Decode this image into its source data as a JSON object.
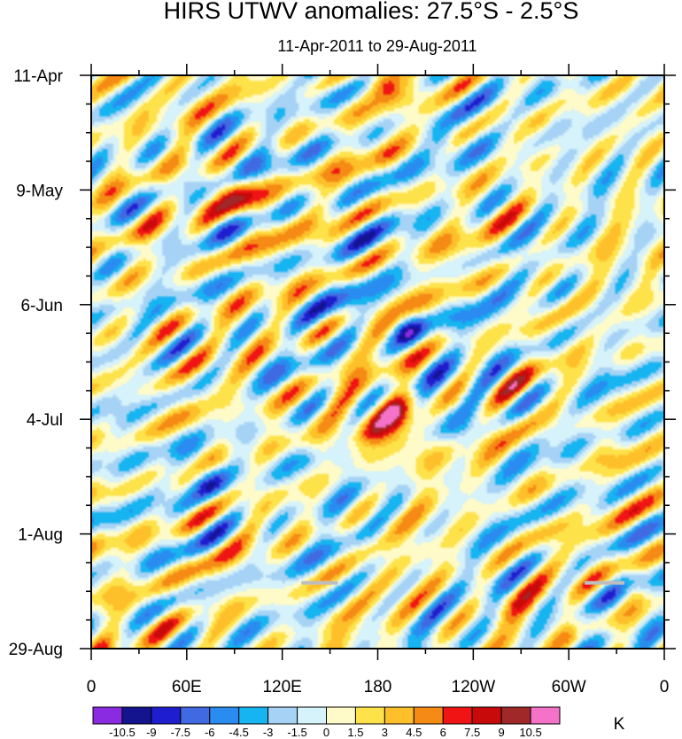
{
  "chart_data": {
    "type": "heatmap",
    "title": "HIRS UTWV anomalies: 27.5°S - 2.5°S",
    "subtitle": "11-Apr-2011 to 29-Aug-2011",
    "x_tick_labels": [
      "0",
      "60E",
      "120E",
      "180",
      "120W",
      "60W",
      "0"
    ],
    "x_range_deg_east": [
      0,
      360
    ],
    "y_tick_labels": [
      "11-Apr",
      "9-May",
      "6-Jun",
      "4-Jul",
      "1-Aug",
      "29-Aug"
    ],
    "y_range_days": [
      0,
      140
    ],
    "colorbar_levels": [
      "-10.5",
      "-9",
      "-7.5",
      "-6",
      "-4.5",
      "-3",
      "-1.5",
      "0",
      "1.5",
      "3",
      "4.5",
      "6",
      "7.5",
      "9",
      "10.5"
    ],
    "colorbar_colors": [
      "#8a2be2",
      "#14148f",
      "#1e1ecf",
      "#4169e1",
      "#2a8cf0",
      "#16b4f0",
      "#a6d3f5",
      "#d6f2fa",
      "#fffbc8",
      "#fde24a",
      "#fdc02a",
      "#f58a14",
      "#f01414",
      "#c80a0a",
      "#a02828",
      "#f472c8"
    ],
    "units": "K",
    "missing_color": "#bebebe",
    "features": [
      {
        "note": "largest positive anomaly (>10.5 K)",
        "lon": 190,
        "day": 85
      },
      {
        "note": "strong positive anomaly",
        "lon": 95,
        "day": 29
      },
      {
        "note": "strong positive anomaly",
        "lon": 183,
        "day": 1
      }
    ]
  }
}
